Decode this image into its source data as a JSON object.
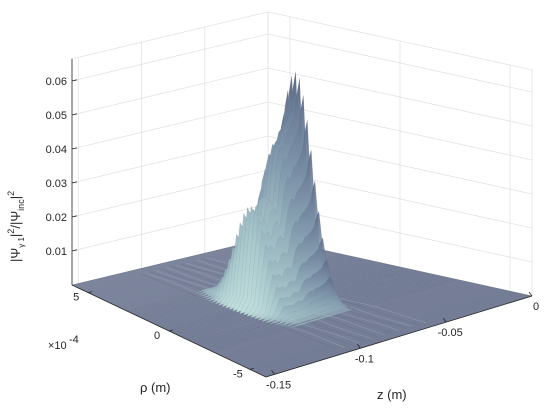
{
  "chart_data": {
    "type": "surface",
    "title": "",
    "colormap": "bone",
    "z_axis": {
      "label": "z (m)",
      "ticks": [
        -0.15,
        -0.1,
        -0.05,
        0
      ],
      "tick_labels": [
        "-0.15",
        "-0.1",
        "-0.05",
        "0"
      ],
      "range": [
        -0.155,
        0.0
      ]
    },
    "rho_axis": {
      "label": "ρ (m)",
      "ticks": [
        -5,
        0,
        5
      ],
      "tick_labels": [
        "-5",
        "0",
        "5"
      ],
      "exponent_label": "×10",
      "exponent": "-4",
      "range": [
        -6,
        6
      ]
    },
    "value_axis": {
      "label_main": "|Ψ",
      "label_sub1": "γ 1",
      "label_mid": "|",
      "label_sup1": "2",
      "label_slash": "/|Ψ",
      "label_sub2": "inc",
      "label_end": "|",
      "label_sup2": "2",
      "ticks": [
        0.01,
        0.02,
        0.03,
        0.04,
        0.05,
        0.06
      ],
      "tick_labels": [
        "0.01",
        "0.02",
        "0.03",
        "0.04",
        "0.05",
        "0.06"
      ],
      "range": [
        0,
        0.065
      ]
    },
    "grid": true,
    "peak_profile_rho0": [
      {
        "z": -0.155,
        "v": 0.0
      },
      {
        "z": -0.11,
        "v": 0.0
      },
      {
        "z": -0.105,
        "v": 0.004
      },
      {
        "z": -0.102,
        "v": 0.02
      },
      {
        "z": -0.1,
        "v": 0.03
      },
      {
        "z": -0.098,
        "v": 0.028
      },
      {
        "z": -0.096,
        "v": 0.029
      },
      {
        "z": -0.094,
        "v": 0.026
      },
      {
        "z": -0.092,
        "v": 0.031
      },
      {
        "z": -0.09,
        "v": 0.032
      },
      {
        "z": -0.088,
        "v": 0.03
      },
      {
        "z": -0.085,
        "v": 0.043
      },
      {
        "z": -0.083,
        "v": 0.047
      },
      {
        "z": -0.081,
        "v": 0.046
      },
      {
        "z": -0.079,
        "v": 0.05
      },
      {
        "z": -0.077,
        "v": 0.051
      },
      {
        "z": -0.075,
        "v": 0.053
      },
      {
        "z": -0.073,
        "v": 0.056
      },
      {
        "z": -0.072,
        "v": 0.061
      },
      {
        "z": -0.07,
        "v": 0.066
      },
      {
        "z": -0.068,
        "v": 0.045
      },
      {
        "z": -0.066,
        "v": 0.0
      },
      {
        "z": 0.0,
        "v": 0.0
      }
    ]
  }
}
